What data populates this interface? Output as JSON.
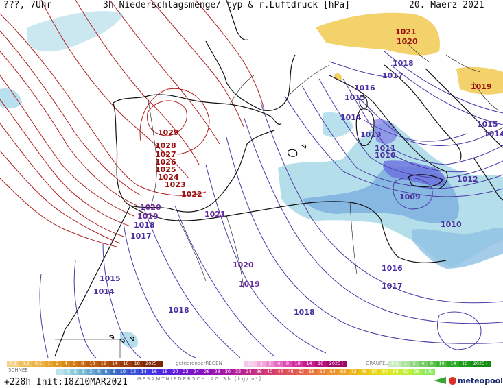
{
  "header": {
    "left": "???, 7Uhr",
    "title": "3h Niederschlagsmenge/-typ & r.Luftdruck [hPa]",
    "date": "20. Maerz 2021"
  },
  "footer": {
    "run": "+228h Init:18Z10MAR2021",
    "brand": "meteopool.org"
  },
  "legend": {
    "snow_title": "SCHNEE",
    "freezing_title": "gefrierenderREGEN",
    "graupel_title": "GRAUPEL",
    "total_title": "GESAMTNIEDERSCHLAG 3h [kg/m²]",
    "snow_values": [
      "0.1",
      "0.2",
      "0.5",
      "1",
      "2",
      "4",
      "6",
      "8",
      "10",
      "12",
      "14",
      "16",
      "18",
      "2025+"
    ],
    "snow_colors": [
      "#f4d089",
      "#f0c060",
      "#edb347",
      "#e8a530",
      "#e09820",
      "#d98a18",
      "#d27c14",
      "#c96e12",
      "#bf6010",
      "#b4530e",
      "#a8470c",
      "#9c3c0a",
      "#8d3108",
      "#7d2706"
    ],
    "freezing_values": [
      "0.1",
      "1",
      "2",
      "4",
      "8",
      "10",
      "14",
      "16",
      "2025+"
    ],
    "freezing_colors": [
      "#f7c7e8",
      "#f2a9dc",
      "#ed8bcf",
      "#e66cc1",
      "#df4db2",
      "#d42fa2",
      "#c61d90",
      "#b5107e",
      "#a0086a"
    ],
    "graupel_values": [
      "0.5",
      "1",
      "2",
      "4",
      "8",
      "10",
      "14",
      "16",
      "2025+"
    ],
    "graupel_colors": [
      "#c9edc0",
      "#aee3a2",
      "#92d883",
      "#76cd66",
      "#5bc24b",
      "#42b636",
      "#2ea926",
      "#1e9a1a",
      "#128a10"
    ],
    "total_values": [
      "1",
      "2",
      "5",
      "1",
      "2",
      "4",
      "6",
      "8",
      "10",
      "12",
      "14",
      "16",
      "18",
      "20",
      "22",
      "24",
      "26",
      "28",
      "30",
      "32",
      "34",
      "36",
      "40",
      "44",
      "48",
      "52",
      "56",
      "60",
      "64",
      "68",
      "72",
      "76",
      "80",
      "84",
      "88",
      "92",
      "96",
      "100"
    ],
    "total_colors": [
      "#b9e3ec",
      "#a3d7e4",
      "#8ecadc",
      "#7bb9d6",
      "#6aa7d0",
      "#5a96ca",
      "#4b84c4",
      "#3d73be",
      "#3a62c9",
      "#3a52d6",
      "#3d42df",
      "#4532e4",
      "#5325e2",
      "#611cdb",
      "#7016d1",
      "#7f14c6",
      "#8e13bb",
      "#9c15b0",
      "#a91aa4",
      "#b52198",
      "#c02a8b",
      "#ca337e",
      "#d23d71",
      "#da4864",
      "#e05557",
      "#e5634b",
      "#e97240",
      "#ec8236",
      "#ee922d",
      "#efa325",
      "#eeb41f",
      "#ecc51b",
      "#e8d51a",
      "#e1e31d",
      "#d4ec27",
      "#c1f036",
      "#a8ef4a",
      "#8ceb61"
    ]
  },
  "isobar_labels": {
    "red": [
      {
        "text": "1029"
      },
      {
        "text": "1028"
      },
      {
        "text": "1027"
      },
      {
        "text": "1026"
      },
      {
        "text": "1025"
      },
      {
        "text": "1024"
      },
      {
        "text": "1023"
      },
      {
        "text": "1022"
      },
      {
        "text": "1021"
      },
      {
        "text": "1020"
      },
      {
        "text": "1019"
      }
    ],
    "blue": [
      {
        "text": "1018"
      },
      {
        "text": "1017"
      },
      {
        "text": "1016"
      },
      {
        "text": "1015"
      },
      {
        "text": "1014"
      },
      {
        "text": "1013"
      },
      {
        "text": "1011"
      },
      {
        "text": "1010"
      },
      {
        "text": "1015"
      },
      {
        "text": "1014"
      },
      {
        "text": "1012"
      },
      {
        "text": "1009"
      },
      {
        "text": "1010"
      },
      {
        "text": "1016"
      },
      {
        "text": "1017"
      },
      {
        "text": "1020"
      },
      {
        "text": "1021"
      },
      {
        "text": "1020"
      },
      {
        "text": "1019"
      },
      {
        "text": "1018"
      },
      {
        "text": "1017"
      },
      {
        "text": "1015"
      },
      {
        "text": "1014"
      },
      {
        "text": "1019"
      },
      {
        "text": "1018"
      },
      {
        "text": "1018"
      }
    ]
  },
  "colors": {
    "high_isobar": "#b02020",
    "low_isobar": "#4a3aa8",
    "label_red": "#9a0e0e",
    "label_blue": "#4b2fa0",
    "label_blue_alt": "#6a2b9a",
    "precip_light": "#a8d8e8",
    "precip_mid": "#7fb2e0",
    "precip_heavy": "#6a6fe0",
    "snow": "#f2d064",
    "coast": "#111111"
  }
}
